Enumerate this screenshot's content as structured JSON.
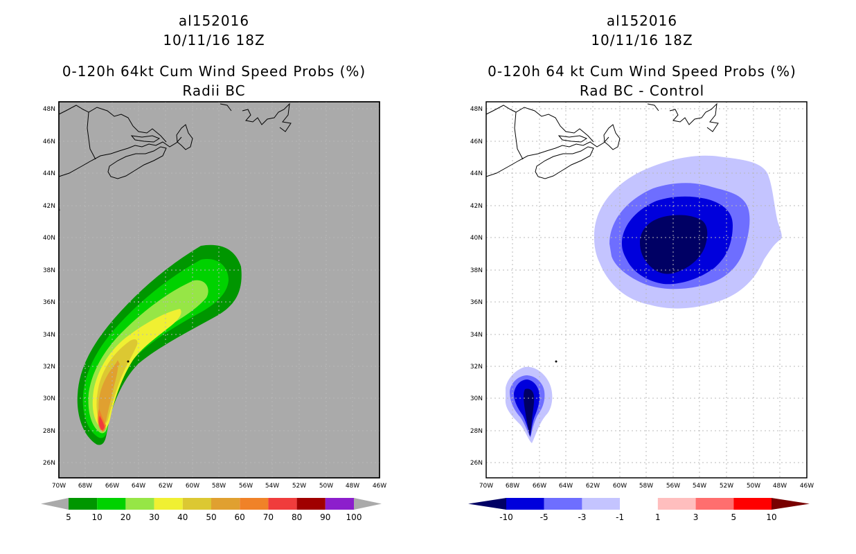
{
  "left": {
    "storm_id": "al152016",
    "datetime": "10/11/16 18Z",
    "title": "0-120h 64kt Cum Wind Speed Probs (%)",
    "subtitle": "Radii BC",
    "colorbar": {
      "labels": [
        "5",
        "10",
        "20",
        "30",
        "40",
        "50",
        "60",
        "70",
        "80",
        "90",
        "100"
      ],
      "colors": [
        "#009600",
        "#00d200",
        "#96e646",
        "#f0f032",
        "#dcc832",
        "#e0a030",
        "#f08228",
        "#f03c3c",
        "#a00000",
        "#8c1ecc"
      ],
      "under_color": "#aaaaaa",
      "over_color": "#aaaaaa"
    }
  },
  "right": {
    "storm_id": "al152016",
    "datetime": "10/11/16 18Z",
    "title": "0-120h 64 kt Cum Wind Speed Probs (%)",
    "subtitle": "Rad BC - Control",
    "colorbar": {
      "labels": [
        "-10",
        "-5",
        "-3",
        "-1",
        "1",
        "3",
        "5",
        "10"
      ],
      "colors": [
        "#0000dc",
        "#6e6eff",
        "#c4c4ff",
        "#ffffff",
        "#ffbebe",
        "#ff6e6e",
        "#ff0000"
      ],
      "under_color": "#000064",
      "over_color": "#780000"
    }
  },
  "axes": {
    "lon_labels": [
      "70W",
      "68W",
      "66W",
      "64W",
      "62W",
      "60W",
      "58W",
      "56W",
      "54W",
      "52W",
      "50W",
      "48W",
      "46W"
    ],
    "lat_labels": [
      "48N",
      "46N",
      "44N",
      "42N",
      "40N",
      "38N",
      "36N",
      "34N",
      "32N",
      "30N",
      "28N",
      "26N"
    ],
    "grid_color": "#aaaaaa",
    "background_left": "#aaaaaa"
  }
}
